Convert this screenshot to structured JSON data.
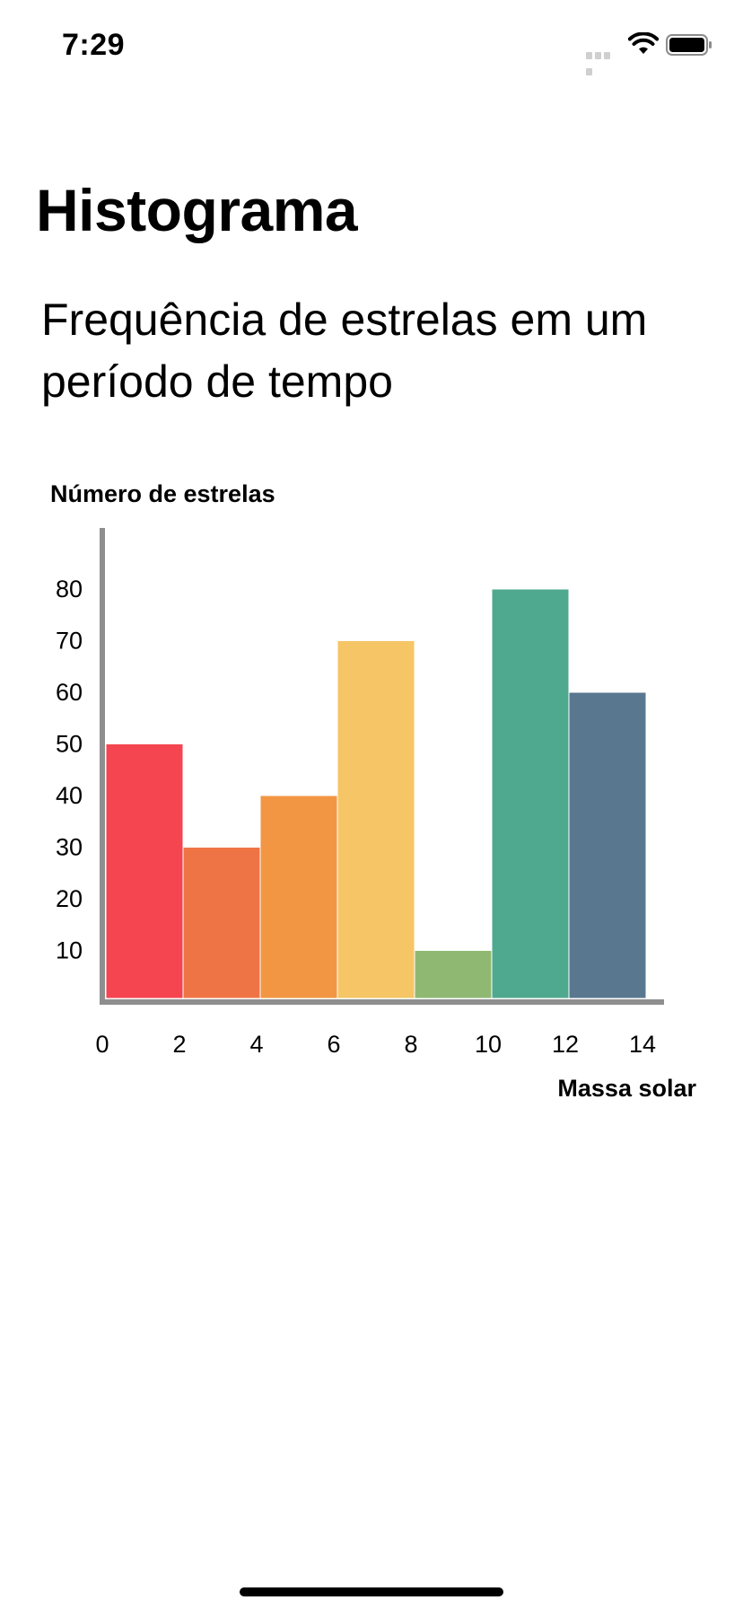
{
  "status_bar": {
    "time": "7:29",
    "icons": [
      "cellular-signal-icon",
      "wifi-icon",
      "battery-icon"
    ]
  },
  "page": {
    "title": "Histograma",
    "subtitle": "Frequência de estrelas em um período de tempo"
  },
  "chart_data": {
    "type": "bar",
    "title": "",
    "ylabel": "Número de estrelas",
    "xlabel": "Massa solar",
    "x_ticks": [
      "0",
      "2",
      "4",
      "6",
      "8",
      "10",
      "12",
      "14"
    ],
    "y_ticks": [
      "10",
      "20",
      "30",
      "40",
      "50",
      "60",
      "70",
      "80"
    ],
    "ylim": [
      0,
      90
    ],
    "xlim": [
      0,
      14.5
    ],
    "grid": false,
    "bins": [
      {
        "start": 0,
        "end": 2,
        "value": 50,
        "color": "#F54550"
      },
      {
        "start": 2,
        "end": 4,
        "value": 30,
        "color": "#EF7445"
      },
      {
        "start": 4,
        "end": 6,
        "value": 40,
        "color": "#F29643"
      },
      {
        "start": 6,
        "end": 8,
        "value": 70,
        "color": "#F6C566"
      },
      {
        "start": 8,
        "end": 10,
        "value": 10,
        "color": "#8FB973"
      },
      {
        "start": 10,
        "end": 12,
        "value": 80,
        "color": "#4FA98F"
      },
      {
        "start": 12,
        "end": 14,
        "value": 60,
        "color": "#5A7790"
      }
    ],
    "axis_color": "#8E8E8E"
  }
}
